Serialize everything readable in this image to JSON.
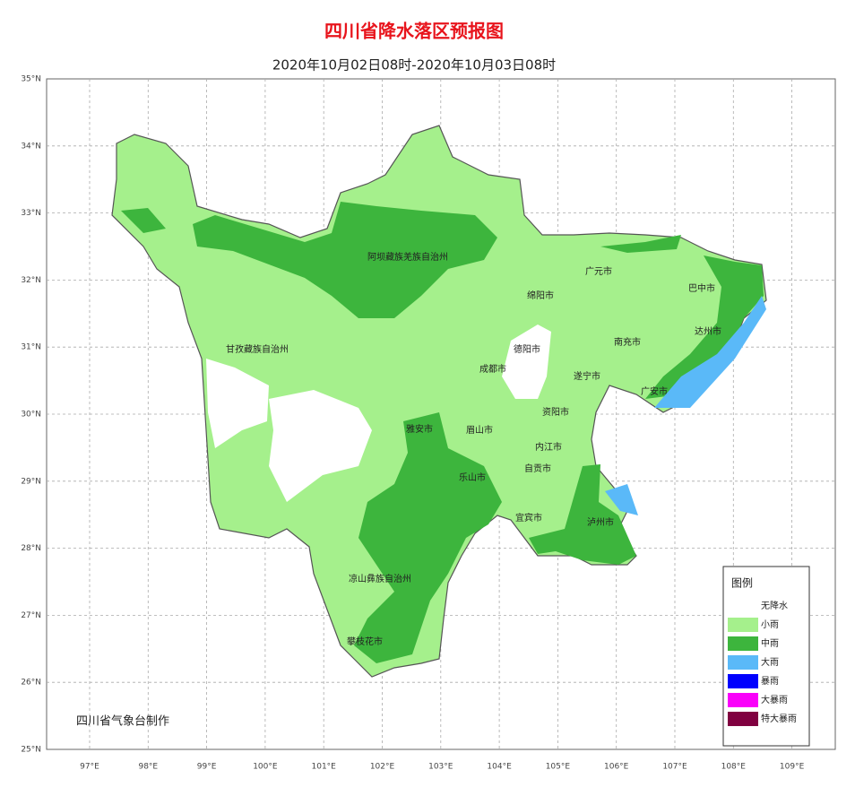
{
  "header": {
    "title": "四川省降水落区预报图",
    "subtitle": "2020年10月02日08时-2020年10月03日08时"
  },
  "latitude_labels": [
    "35°N",
    "34°N",
    "33°N",
    "32°N",
    "31°N",
    "30°N",
    "29°N",
    "28°N",
    "27°N",
    "26°N",
    "25°N"
  ],
  "longitude_labels": [
    "97°E",
    "98°E",
    "99°E",
    "100°E",
    "101°E",
    "102°E",
    "103°E",
    "104°E",
    "105°E",
    "106°E",
    "107°E",
    "108°E",
    "109°E"
  ],
  "regions": [
    "阿坝藏族羌族自治州",
    "广元市",
    "巴中市",
    "绵阳市",
    "德阳市",
    "南充市",
    "达州市",
    "成都市",
    "遂宁市",
    "广安市",
    "甘孜藏族自治州",
    "资阳市",
    "雅安市",
    "眉山市",
    "内江市",
    "自贡市",
    "乐山市",
    "宜宾市",
    "泸州市",
    "凉山彝族自治州",
    "攀枝花市"
  ],
  "legend": {
    "title": "图例",
    "items": [
      "无降水",
      "小雨",
      "中雨",
      "大雨",
      "暴雨",
      "大暴雨",
      "特大暴雨"
    ]
  },
  "credit": "四川省气象台制作"
}
